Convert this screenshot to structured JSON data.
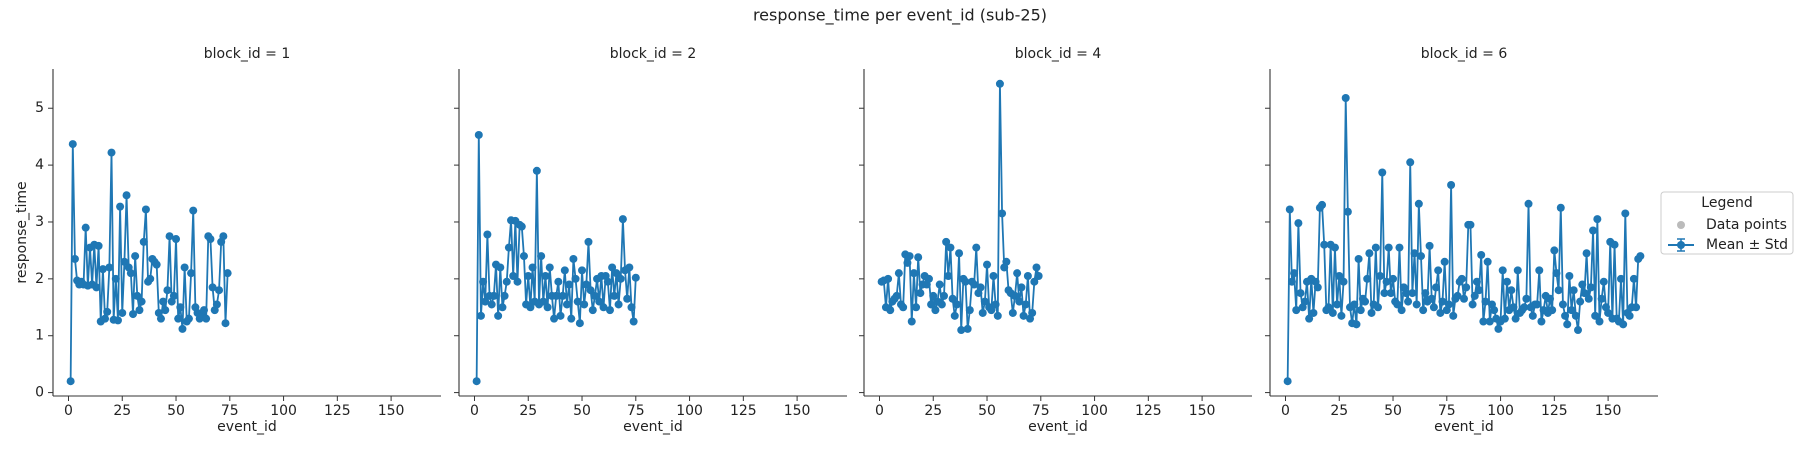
{
  "title": "response_time per event_id (sub-25)",
  "legend": {
    "title": "Legend",
    "entries": [
      {
        "name": "Data points",
        "color": "#bbbbbb"
      },
      {
        "name": "Mean ± Std",
        "color": "#1f77b4"
      }
    ]
  },
  "chart_data": [
    {
      "type": "line",
      "title": "block_id = 1",
      "xlabel": "event_id",
      "ylabel": "response_time",
      "color": "#1f77b4",
      "x": [
        1,
        2,
        3,
        4,
        5,
        6,
        7,
        8,
        9,
        10,
        11,
        12,
        13,
        14,
        15,
        16,
        17,
        18,
        19,
        20,
        21,
        22,
        23,
        24,
        25,
        26,
        27,
        28,
        29,
        30,
        31,
        32,
        33,
        34,
        35,
        36,
        37,
        38,
        39,
        40,
        41,
        42,
        43,
        44,
        45,
        46,
        47,
        48,
        49,
        50,
        51,
        52,
        53,
        54,
        55,
        56,
        57,
        58,
        59,
        60,
        61,
        62,
        63,
        64,
        65,
        66,
        67,
        68,
        69,
        70,
        71,
        72,
        73,
        74
      ],
      "values": [
        0.2,
        4.37,
        2.35,
        1.97,
        1.9,
        1.95,
        1.9,
        2.9,
        1.88,
        2.55,
        1.9,
        2.6,
        1.85,
        2.58,
        1.25,
        2.17,
        1.3,
        1.42,
        2.2,
        4.22,
        1.28,
        2.0,
        1.27,
        3.27,
        1.4,
        2.3,
        3.47,
        2.2,
        2.1,
        1.38,
        2.4,
        1.7,
        1.45,
        1.6,
        2.65,
        3.22,
        1.95,
        2.0,
        2.35,
        2.3,
        2.25,
        1.4,
        1.3,
        1.6,
        1.45,
        1.8,
        2.75,
        1.6,
        1.7,
        2.7,
        1.3,
        1.5,
        1.12,
        2.2,
        1.25,
        1.3,
        2.1,
        3.2,
        1.5,
        1.4,
        1.3,
        1.35,
        1.45,
        1.3,
        2.75,
        2.7,
        1.85,
        1.45,
        1.55,
        1.8,
        2.65,
        2.75,
        1.22,
        2.1
      ],
      "xlim": [
        -7.2,
        173.2
      ],
      "xticks": [
        0,
        25,
        50,
        75,
        100,
        125,
        150
      ],
      "ylim": [
        -0.06,
        5.69
      ],
      "yticks": [
        0,
        1,
        2,
        3,
        4,
        5
      ]
    },
    {
      "type": "line",
      "title": "block_id = 2",
      "xlabel": "event_id",
      "color": "#1f77b4",
      "x": [
        1,
        2,
        3,
        4,
        5,
        6,
        7,
        8,
        9,
        10,
        11,
        12,
        13,
        14,
        15,
        16,
        17,
        18,
        19,
        20,
        21,
        22,
        23,
        24,
        25,
        26,
        27,
        28,
        29,
        30,
        31,
        32,
        33,
        34,
        35,
        36,
        37,
        38,
        39,
        40,
        41,
        42,
        43,
        44,
        45,
        46,
        47,
        48,
        49,
        50,
        51,
        52,
        53,
        54,
        55,
        56,
        57,
        58,
        59,
        60,
        61,
        62,
        63,
        64,
        65,
        66,
        67,
        68,
        69,
        70,
        71,
        72,
        73,
        74,
        75
      ],
      "values": [
        0.2,
        4.53,
        1.35,
        1.95,
        1.6,
        2.78,
        1.7,
        1.55,
        1.7,
        2.25,
        1.35,
        2.2,
        1.5,
        1.7,
        1.95,
        2.55,
        3.03,
        2.05,
        3.02,
        1.95,
        2.95,
        2.92,
        2.4,
        1.55,
        2.05,
        1.5,
        2.2,
        1.6,
        3.9,
        1.55,
        2.4,
        1.6,
        2.05,
        1.5,
        2.2,
        1.7,
        1.3,
        1.7,
        1.95,
        1.35,
        1.7,
        2.15,
        1.55,
        1.9,
        1.3,
        2.35,
        2.0,
        1.6,
        1.22,
        2.15,
        1.55,
        1.9,
        2.65,
        1.8,
        1.45,
        1.7,
        2.0,
        1.6,
        2.05,
        1.5,
        2.05,
        1.95,
        1.45,
        2.2,
        1.7,
        2.1,
        1.55,
        2.0,
        3.05,
        2.15,
        1.65,
        2.2,
        1.5,
        1.25,
        2.02
      ],
      "xlim": [
        -7.2,
        173.2
      ],
      "xticks": [
        0,
        25,
        50,
        75,
        100,
        125,
        150
      ],
      "ylim": [
        -0.06,
        5.69
      ]
    },
    {
      "type": "line",
      "title": "block_id = 4",
      "xlabel": "event_id",
      "color": "#1f77b4",
      "x": [
        1,
        2,
        3,
        4,
        5,
        6,
        7,
        8,
        9,
        10,
        11,
        12,
        13,
        14,
        15,
        16,
        17,
        18,
        19,
        20,
        21,
        22,
        23,
        24,
        25,
        26,
        27,
        28,
        29,
        30,
        31,
        32,
        33,
        34,
        35,
        36,
        37,
        38,
        39,
        40,
        41,
        42,
        43,
        44,
        45,
        46,
        47,
        48,
        49,
        50,
        51,
        52,
        53,
        54,
        55,
        56,
        57,
        58,
        59,
        60,
        61,
        62,
        63,
        64,
        65,
        66,
        67,
        68,
        69,
        70,
        71,
        72,
        73,
        74
      ],
      "values": [
        1.95,
        1.97,
        1.5,
        2.0,
        1.45,
        1.6,
        1.65,
        1.7,
        2.1,
        1.55,
        1.5,
        2.43,
        2.28,
        2.4,
        1.25,
        2.1,
        1.5,
        2.38,
        1.75,
        1.9,
        2.05,
        1.9,
        2.0,
        1.55,
        1.7,
        1.45,
        1.6,
        1.9,
        1.55,
        1.7,
        2.65,
        2.05,
        2.55,
        1.65,
        1.35,
        1.55,
        2.45,
        1.1,
        2.0,
        1.95,
        1.12,
        1.45,
        1.95,
        1.9,
        2.55,
        1.75,
        1.85,
        1.4,
        1.6,
        2.25,
        1.5,
        1.45,
        2.05,
        1.55,
        1.35,
        5.43,
        3.15,
        2.2,
        2.3,
        1.8,
        1.75,
        1.4,
        1.7,
        2.1,
        1.6,
        1.85,
        1.35,
        1.55,
        2.05,
        1.3,
        1.4,
        1.95,
        2.2,
        2.05
      ],
      "xlim": [
        -7.2,
        173.2
      ],
      "xticks": [
        0,
        25,
        50,
        75,
        100,
        125,
        150
      ],
      "ylim": [
        -0.06,
        5.69
      ]
    },
    {
      "type": "line",
      "title": "block_id = 6",
      "xlabel": "event_id",
      "color": "#1f77b4",
      "x": [
        1,
        2,
        3,
        4,
        5,
        6,
        7,
        8,
        9,
        10,
        11,
        12,
        13,
        14,
        15,
        16,
        17,
        18,
        19,
        20,
        21,
        22,
        23,
        24,
        25,
        26,
        27,
        28,
        29,
        30,
        31,
        32,
        33,
        34,
        35,
        36,
        37,
        38,
        39,
        40,
        41,
        42,
        43,
        44,
        45,
        46,
        47,
        48,
        49,
        50,
        51,
        52,
        53,
        54,
        55,
        56,
        57,
        58,
        59,
        60,
        61,
        62,
        63,
        64,
        65,
        66,
        67,
        68,
        69,
        70,
        71,
        72,
        73,
        74,
        75,
        76,
        77,
        78,
        79,
        80,
        81,
        82,
        83,
        84,
        85,
        86,
        87,
        88,
        89,
        90,
        91,
        92,
        93,
        94,
        95,
        96,
        97,
        98,
        99,
        100,
        101,
        102,
        103,
        104,
        105,
        106,
        107,
        108,
        109,
        110,
        111,
        112,
        113,
        114,
        115,
        116,
        117,
        118,
        119,
        120,
        121,
        122,
        123,
        124,
        125,
        126,
        127,
        128,
        129,
        130,
        131,
        132,
        133,
        134,
        135,
        136,
        137,
        138,
        139,
        140,
        141,
        142,
        143,
        144,
        145,
        146,
        147,
        148,
        149,
        150,
        151,
        152,
        153,
        154,
        155,
        156,
        157,
        158,
        159,
        160,
        161,
        162,
        163,
        164,
        165
      ],
      "values": [
        0.2,
        3.22,
        1.95,
        2.1,
        1.45,
        2.98,
        1.75,
        1.5,
        1.6,
        1.95,
        1.3,
        2.0,
        1.4,
        1.95,
        1.85,
        3.25,
        3.3,
        2.6,
        1.45,
        1.5,
        2.6,
        1.4,
        2.55,
        1.55,
        2.05,
        1.35,
        1.95,
        5.18,
        3.18,
        1.5,
        1.22,
        1.55,
        1.2,
        2.35,
        1.45,
        1.65,
        1.6,
        2.0,
        2.45,
        1.4,
        1.55,
        2.55,
        1.5,
        2.05,
        3.87,
        1.75,
        1.95,
        2.55,
        1.75,
        2.0,
        1.6,
        1.55,
        2.55,
        1.45,
        1.85,
        1.75,
        1.6,
        4.05,
        1.75,
        2.45,
        1.55,
        3.32,
        2.4,
        1.45,
        1.75,
        1.6,
        2.58,
        1.65,
        1.5,
        1.85,
        2.15,
        1.4,
        1.6,
        2.3,
        1.45,
        1.55,
        3.65,
        1.35,
        1.65,
        1.7,
        1.95,
        2.0,
        1.65,
        1.85,
        2.95,
        2.95,
        1.55,
        1.7,
        1.95,
        1.8,
        2.42,
        1.25,
        1.6,
        2.3,
        1.25,
        1.55,
        1.45,
        1.3,
        1.12,
        1.25,
        2.15,
        1.3,
        1.95,
        1.45,
        1.8,
        1.5,
        1.3,
        2.15,
        1.4,
        1.45,
        1.5,
        1.65,
        3.32,
        1.5,
        1.35,
        1.55,
        1.55,
        2.15,
        1.25,
        1.45,
        1.7,
        1.4,
        1.65,
        1.45,
        2.5,
        2.1,
        1.8,
        3.25,
        1.55,
        1.35,
        1.2,
        2.05,
        1.45,
        1.8,
        1.35,
        1.1,
        1.6,
        1.9,
        1.75,
        2.45,
        1.65,
        1.85,
        2.85,
        1.35,
        3.05,
        1.25,
        1.65,
        1.95,
        1.5,
        1.4,
        2.65,
        1.3,
        2.6,
        1.3,
        1.25,
        2.0,
        1.2,
        3.15,
        1.4,
        1.35,
        1.5,
        2.0,
        1.5,
        2.35,
        2.4
      ],
      "xlim": [
        -7.2,
        173.2
      ],
      "xticks": [
        0,
        25,
        50,
        75,
        100,
        125,
        150
      ],
      "ylim": [
        -0.06,
        5.69
      ]
    }
  ]
}
